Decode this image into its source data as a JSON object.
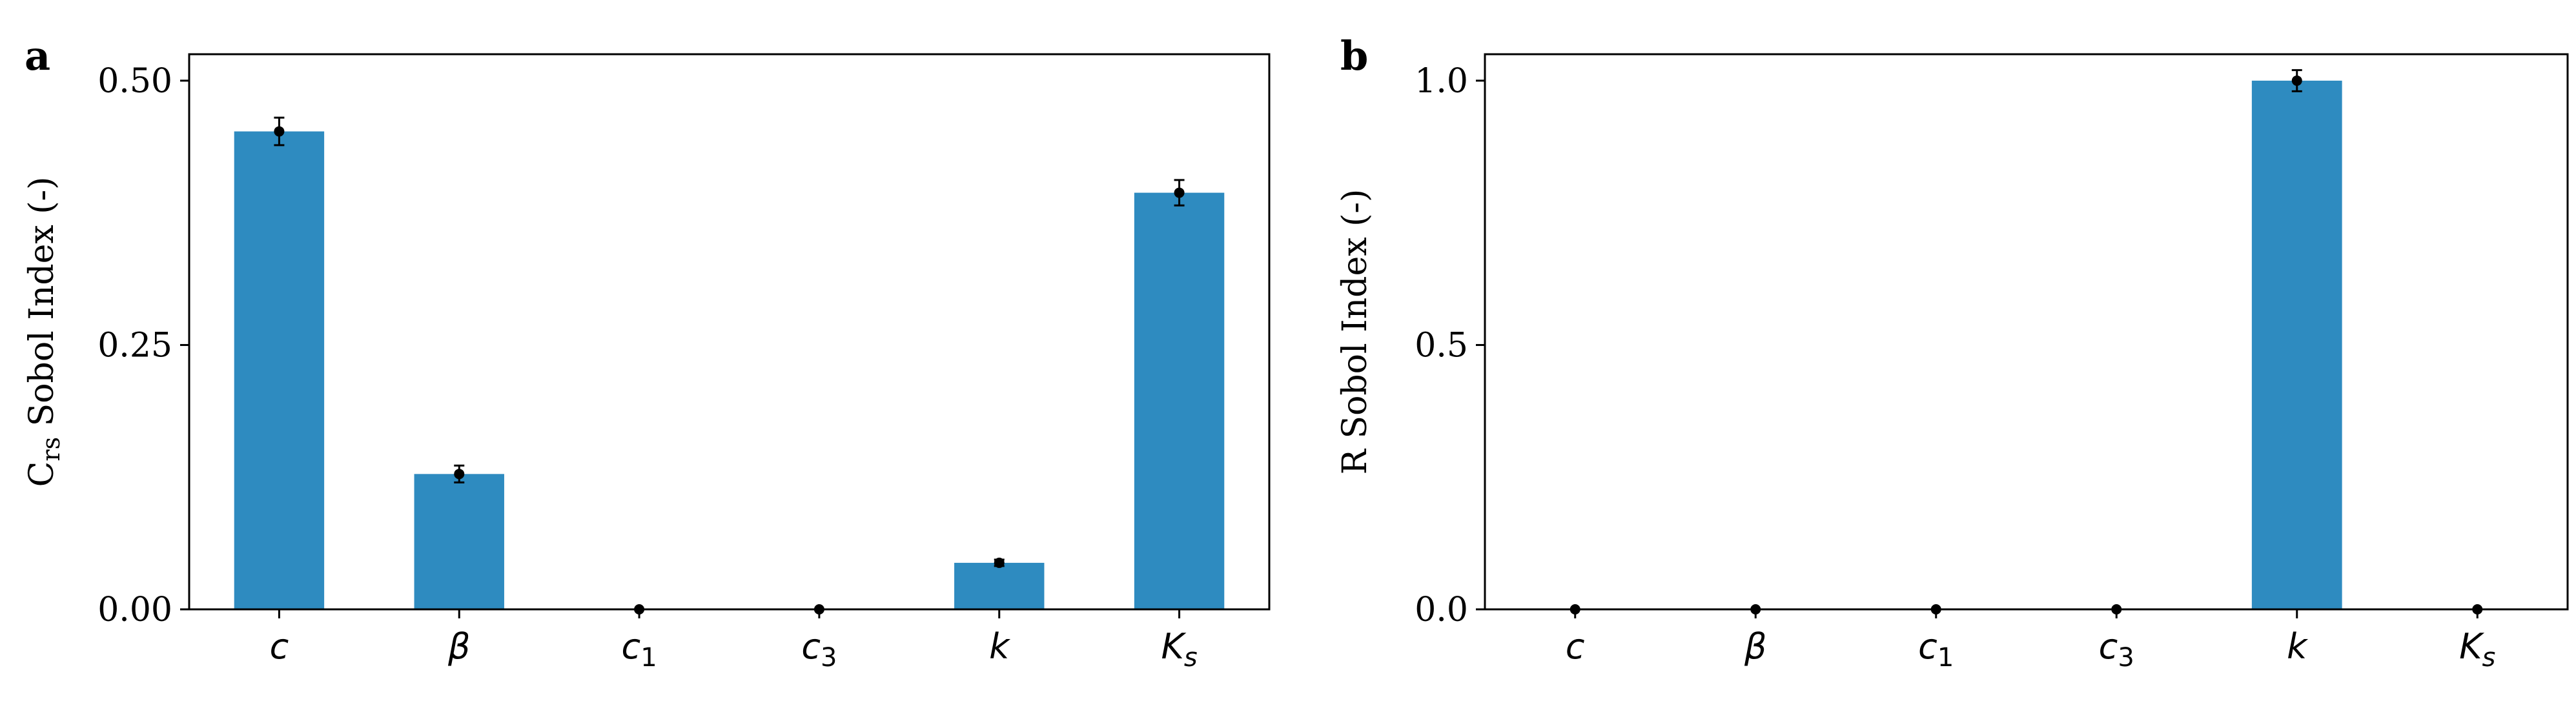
{
  "bar_color": "#2e8bc0",
  "axis_color": "#000000",
  "chart_data": [
    {
      "panel_label": "a",
      "type": "bar",
      "categories": [
        {
          "base": "c",
          "sub": ""
        },
        {
          "base": "β",
          "sub": ""
        },
        {
          "base": "c",
          "sub": "1"
        },
        {
          "base": "c",
          "sub": "3"
        },
        {
          "base": "k",
          "sub": ""
        },
        {
          "base": "K",
          "sub": "s"
        }
      ],
      "values": [
        0.452,
        0.128,
        0.0,
        0.0,
        0.044,
        0.394
      ],
      "errors": [
        0.013,
        0.008,
        0.0,
        0.0,
        0.003,
        0.012
      ],
      "ylabel": {
        "prefix": "C",
        "sub": "rs",
        "suffix": " Sobol Index (-)"
      },
      "ylim": [
        0,
        0.525
      ],
      "yticks": [
        0.0,
        0.25,
        0.5
      ],
      "yticklabels": [
        "0.00",
        "0.25",
        "0.50"
      ],
      "grid": false,
      "legend": "none"
    },
    {
      "panel_label": "b",
      "type": "bar",
      "categories": [
        {
          "base": "c",
          "sub": ""
        },
        {
          "base": "β",
          "sub": ""
        },
        {
          "base": "c",
          "sub": "1"
        },
        {
          "base": "c",
          "sub": "3"
        },
        {
          "base": "k",
          "sub": ""
        },
        {
          "base": "K",
          "sub": "s"
        }
      ],
      "values": [
        0.0,
        0.0,
        0.0,
        0.0,
        1.0,
        0.0
      ],
      "errors": [
        0.0,
        0.0,
        0.0,
        0.0,
        0.02,
        0.0
      ],
      "ylabel": {
        "prefix": "R",
        "sub": "",
        "suffix": " Sobol Index (-)"
      },
      "ylim": [
        0,
        1.05
      ],
      "yticks": [
        0.0,
        0.5,
        1.0
      ],
      "yticklabels": [
        "0.0",
        "0.5",
        "1.0"
      ],
      "grid": false,
      "legend": "none"
    }
  ]
}
